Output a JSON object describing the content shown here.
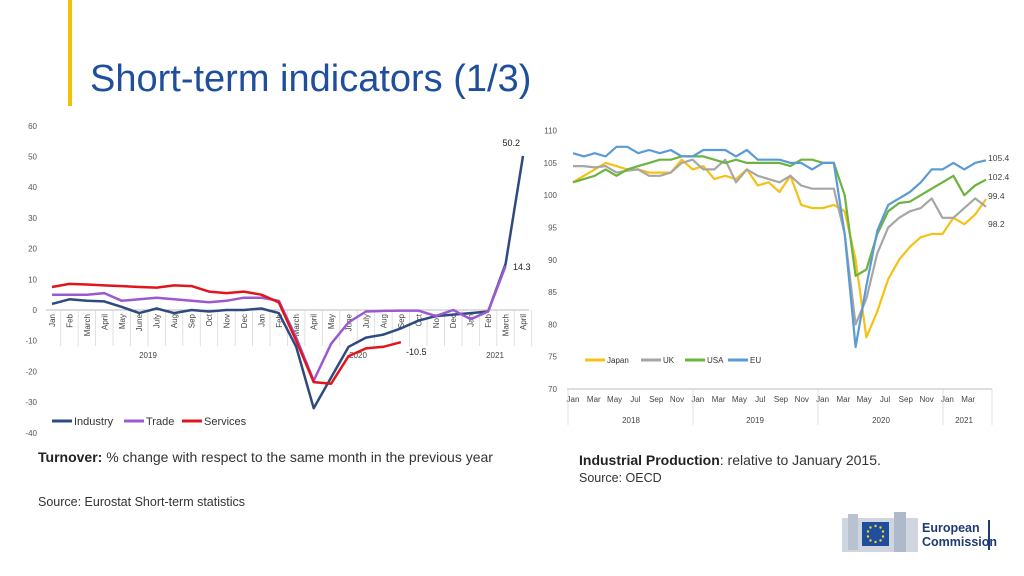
{
  "title": "Short-term indicators (1/3)",
  "colors": {
    "title": "#1F4E9C",
    "accent": "#F2C200",
    "industry": "#2E4A7E",
    "trade": "#9B59D0",
    "services": "#E0161C",
    "japan": "#F5C116",
    "uk": "#A6A6A6",
    "usa": "#6DB33F",
    "eu": "#5B9BD5"
  },
  "left_caption": {
    "bold": "Turnover:",
    "text": " % change with respect to the same month in the previous year",
    "source": "Source: Eurostat Short-term statistics"
  },
  "right_caption": {
    "bold": "Industrial Production",
    "text": ": relative to January 2015.",
    "source": "Source: OECD"
  },
  "logo": {
    "line1": "European",
    "line2": "Commission"
  },
  "chart_data": [
    {
      "type": "line",
      "x": [
        "Jan",
        "Feb",
        "March",
        "April",
        "May",
        "June",
        "July",
        "Aug",
        "Sep",
        "Oct",
        "Nov",
        "Dec",
        "Jan",
        "Feb",
        "March",
        "April",
        "May",
        "June",
        "July",
        "Aug",
        "Sep",
        "Oct",
        "Nov",
        "Dec",
        "Jan",
        "Feb",
        "March",
        "April"
      ],
      "year_labels": [
        "2019",
        "2020",
        "2021"
      ],
      "series": [
        {
          "name": "Industry",
          "values": [
            2,
            3.5,
            3,
            2.8,
            1,
            -1,
            0.5,
            -1,
            0,
            -0.5,
            0,
            0,
            0.5,
            -1,
            -12,
            -32,
            -22,
            -12,
            -9,
            -8,
            -6,
            -3.5,
            -2,
            -1.5,
            -1,
            -0.5,
            15,
            50.2
          ]
        },
        {
          "name": "Trade",
          "values": [
            5,
            5,
            5,
            5.5,
            3,
            3.5,
            4,
            3.5,
            3,
            2.5,
            3,
            4,
            4,
            3,
            -9,
            -23,
            -11,
            -4,
            -0.5,
            -0.3,
            -0.2,
            -0.2,
            -2,
            0,
            -3,
            -0.5,
            14.3,
            null
          ]
        },
        {
          "name": "Services",
          "values": [
            7.5,
            8.5,
            8.3,
            8,
            7.8,
            7.5,
            7.3,
            8,
            7.8,
            6,
            5.5,
            6,
            5,
            2.5,
            -10,
            -23.5,
            -24,
            -15,
            -12.5,
            -12,
            -10.5,
            null,
            null,
            null,
            null,
            null,
            null,
            null
          ]
        }
      ],
      "annotations": [
        "50.2",
        "14.3",
        "-10.5"
      ],
      "ylim": [
        -40,
        60
      ],
      "yticks": [
        60,
        50,
        40,
        30,
        20,
        10,
        0,
        -10,
        -20,
        -30,
        -40
      ],
      "legend": "bottom"
    },
    {
      "type": "line",
      "x_ticks": [
        "Jan",
        "Mar",
        "May",
        "Jul",
        "Sep",
        "Nov",
        "Jan",
        "Mar",
        "May",
        "Jul",
        "Sep",
        "Nov",
        "Jan",
        "Mar",
        "May",
        "Jul",
        "Sep",
        "Nov",
        "Jan",
        "Mar"
      ],
      "year_labels": [
        "2018",
        "2019",
        "2020",
        "2021"
      ],
      "series": [
        {
          "name": "Japan",
          "values": [
            102,
            103,
            104,
            105,
            104.5,
            104,
            104,
            103.5,
            103.5,
            103.5,
            105.5,
            104,
            104.5,
            102.5,
            103,
            102.5,
            104,
            101.5,
            102,
            100.5,
            103,
            98.5,
            98,
            98,
            98.5,
            97.5,
            90,
            78,
            82,
            87,
            90,
            92,
            93.5,
            94,
            94,
            96.5,
            95.5,
            97,
            99.4
          ]
        },
        {
          "name": "UK",
          "values": [
            104.5,
            104.5,
            104.3,
            104.5,
            103.5,
            103.8,
            104,
            103,
            103,
            103.5,
            105,
            105.5,
            104,
            104,
            105.5,
            102,
            104,
            103,
            102.5,
            102,
            103,
            101.5,
            101,
            101,
            101,
            94,
            80,
            84,
            91,
            95,
            96.5,
            97.5,
            98,
            99.5,
            96.5,
            96.5,
            98,
            99.5,
            98.2
          ]
        },
        {
          "name": "USA",
          "values": [
            102,
            102.5,
            103,
            104,
            103,
            104,
            104.5,
            105,
            105.5,
            105.5,
            106,
            106,
            106,
            105.5,
            105,
            105.5,
            105,
            105,
            105,
            105,
            104.5,
            105.5,
            105.5,
            105,
            105,
            100,
            87.5,
            88.5,
            94,
            97.5,
            98.8,
            99,
            100,
            101,
            102,
            103,
            100,
            101.5,
            102.4
          ]
        },
        {
          "name": "EU",
          "values": [
            106.5,
            106,
            106.5,
            106,
            107.5,
            107.5,
            106.5,
            107,
            106.5,
            107,
            106,
            106,
            107,
            107,
            107,
            106,
            107,
            105.5,
            105.5,
            105.5,
            105,
            105,
            104,
            105,
            105,
            94,
            76.5,
            86,
            94.5,
            98.5,
            99.5,
            100.5,
            102,
            104,
            104,
            105,
            104,
            105,
            105.4
          ]
        }
      ],
      "annotations": [
        "105.4",
        "102.4",
        "99.4",
        "98.2"
      ],
      "ylim": [
        70,
        110
      ],
      "yticks": [
        110,
        105,
        100,
        95,
        90,
        85,
        80,
        75,
        70
      ],
      "legend": "bottom"
    }
  ]
}
